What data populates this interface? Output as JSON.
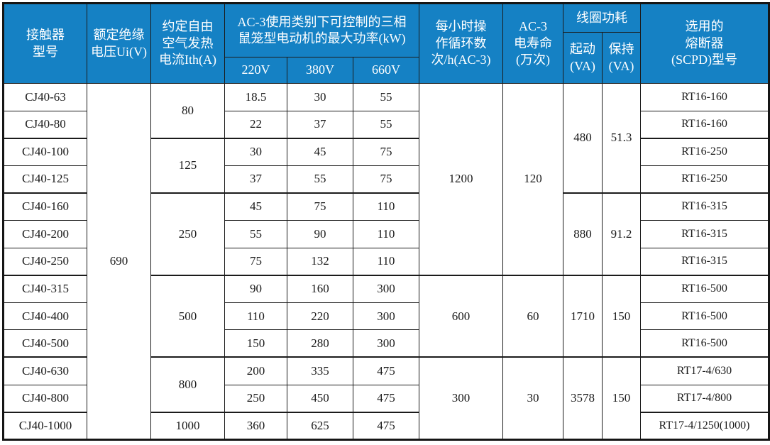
{
  "meta": {
    "description": "CJ40 series contactor technical specification table"
  },
  "colors": {
    "header_bg": "#1581C4",
    "header_text": "#FFFFFF",
    "body_text": "#1A1A1A",
    "border": "#1B1B1B",
    "page_bg": "#FFFFFF"
  },
  "table": {
    "header_rows": [
      [
        {
          "n": "contactor-model",
          "t": "接触器\n型号",
          "rs": 3
        },
        {
          "n": "rated-insulation-voltage",
          "t": "额定绝缘\n电压Ui(V)",
          "rs": 3
        },
        {
          "n": "thermal-current",
          "t": "约定自由\n空气发热\n电流Ith(A)",
          "rs": 3
        },
        {
          "n": "ac3-max-power",
          "t": "AC-3使用类别下可控制的三相\n鼠笼型电动机的最大功率(kW)",
          "rs": 2,
          "cs": 3
        },
        {
          "n": "operating-cycles",
          "t": "每小时操\n作循环数\n次/h(AC-3)",
          "rs": 3
        },
        {
          "n": "ac3-electrical-life",
          "t": "AC-3\n电寿命\n(万次)",
          "rs": 3
        },
        {
          "n": "coil-power",
          "t": "线圈功耗",
          "cs": 2
        },
        {
          "n": "fuse-type",
          "t": "选用的\n熔断器\n(SCPD)型号",
          "rs": 3
        }
      ],
      [
        {
          "n": "coil-start-va",
          "t": "起动\n(VA)",
          "rs": 2
        },
        {
          "n": "coil-hold-va",
          "t": "保持\n(VA)",
          "rs": 2
        }
      ],
      [
        {
          "n": "power-220v",
          "t": "220V"
        },
        {
          "n": "power-380v",
          "t": "380V"
        },
        {
          "n": "power-660v",
          "t": "660V"
        }
      ]
    ],
    "body_rows": [
      [
        {
          "n": "model",
          "t": "CJ40-63"
        },
        {
          "n": "ui",
          "t": "690",
          "rs": 13
        },
        {
          "n": "ith",
          "t": "80",
          "rs": 2
        },
        {
          "n": "p220",
          "t": "18.5"
        },
        {
          "n": "p380",
          "t": "30"
        },
        {
          "n": "p660",
          "t": "55"
        },
        {
          "n": "ops",
          "t": "1200",
          "rs": 7
        },
        {
          "n": "life",
          "t": "120",
          "rs": 7
        },
        {
          "n": "coil-start",
          "t": "480",
          "rs": 4
        },
        {
          "n": "coil-hold",
          "t": "51.3",
          "rs": 4
        },
        {
          "n": "fuse",
          "t": "RT16-160"
        }
      ],
      [
        {
          "n": "model",
          "t": "CJ40-80"
        },
        {
          "n": "p220",
          "t": "22"
        },
        {
          "n": "p380",
          "t": "37"
        },
        {
          "n": "p660",
          "t": "55"
        },
        {
          "n": "fuse",
          "t": "RT16-160"
        }
      ],
      [
        {
          "n": "model",
          "t": "CJ40-100"
        },
        {
          "n": "ith",
          "t": "125",
          "rs": 2
        },
        {
          "n": "p220",
          "t": "30"
        },
        {
          "n": "p380",
          "t": "45"
        },
        {
          "n": "p660",
          "t": "75"
        },
        {
          "n": "fuse",
          "t": "RT16-250"
        }
      ],
      [
        {
          "n": "model",
          "t": "CJ40-125"
        },
        {
          "n": "p220",
          "t": "37"
        },
        {
          "n": "p380",
          "t": "55"
        },
        {
          "n": "p660",
          "t": "75"
        },
        {
          "n": "fuse",
          "t": "RT16-250"
        }
      ],
      [
        {
          "n": "model",
          "t": "CJ40-160"
        },
        {
          "n": "ith",
          "t": "250",
          "rs": 3
        },
        {
          "n": "p220",
          "t": "45"
        },
        {
          "n": "p380",
          "t": "75"
        },
        {
          "n": "p660",
          "t": "110"
        },
        {
          "n": "coil-start",
          "t": "880",
          "rs": 3
        },
        {
          "n": "coil-hold",
          "t": "91.2",
          "rs": 3
        },
        {
          "n": "fuse",
          "t": "RT16-315"
        }
      ],
      [
        {
          "n": "model",
          "t": "CJ40-200"
        },
        {
          "n": "p220",
          "t": "55"
        },
        {
          "n": "p380",
          "t": "90"
        },
        {
          "n": "p660",
          "t": "110"
        },
        {
          "n": "fuse",
          "t": "RT16-315"
        }
      ],
      [
        {
          "n": "model",
          "t": "CJ40-250"
        },
        {
          "n": "p220",
          "t": "75"
        },
        {
          "n": "p380",
          "t": "132"
        },
        {
          "n": "p660",
          "t": "110"
        },
        {
          "n": "fuse",
          "t": "RT16-315"
        }
      ],
      [
        {
          "n": "model",
          "t": "CJ40-315"
        },
        {
          "n": "ith",
          "t": "500",
          "rs": 3
        },
        {
          "n": "p220",
          "t": "90"
        },
        {
          "n": "p380",
          "t": "160"
        },
        {
          "n": "p660",
          "t": "300"
        },
        {
          "n": "ops",
          "t": "600",
          "rs": 3
        },
        {
          "n": "life",
          "t": "60",
          "rs": 3
        },
        {
          "n": "coil-start",
          "t": "1710",
          "rs": 3
        },
        {
          "n": "coil-hold",
          "t": "150",
          "rs": 3
        },
        {
          "n": "fuse",
          "t": "RT16-500"
        }
      ],
      [
        {
          "n": "model",
          "t": "CJ40-400"
        },
        {
          "n": "p220",
          "t": "110"
        },
        {
          "n": "p380",
          "t": "220"
        },
        {
          "n": "p660",
          "t": "300"
        },
        {
          "n": "fuse",
          "t": "RT16-500"
        }
      ],
      [
        {
          "n": "model",
          "t": "CJ40-500"
        },
        {
          "n": "p220",
          "t": "150"
        },
        {
          "n": "p380",
          "t": "280"
        },
        {
          "n": "p660",
          "t": "300"
        },
        {
          "n": "fuse",
          "t": "RT16-500"
        }
      ],
      [
        {
          "n": "model",
          "t": "CJ40-630"
        },
        {
          "n": "ith",
          "t": "800",
          "rs": 2
        },
        {
          "n": "p220",
          "t": "200"
        },
        {
          "n": "p380",
          "t": "335"
        },
        {
          "n": "p660",
          "t": "475"
        },
        {
          "n": "ops",
          "t": "300",
          "rs": 3
        },
        {
          "n": "life",
          "t": "30",
          "rs": 3
        },
        {
          "n": "coil-start",
          "t": "3578",
          "rs": 3
        },
        {
          "n": "coil-hold",
          "t": "150",
          "rs": 3
        },
        {
          "n": "fuse",
          "t": "RT17-4/630"
        }
      ],
      [
        {
          "n": "model",
          "t": "CJ40-800"
        },
        {
          "n": "p220",
          "t": "250"
        },
        {
          "n": "p380",
          "t": "450"
        },
        {
          "n": "p660",
          "t": "475"
        },
        {
          "n": "fuse",
          "t": "RT17-4/800"
        }
      ],
      [
        {
          "n": "model",
          "t": "CJ40-1000"
        },
        {
          "n": "ith",
          "t": "1000"
        },
        {
          "n": "p220",
          "t": "360"
        },
        {
          "n": "p380",
          "t": "625"
        },
        {
          "n": "p660",
          "t": "475"
        },
        {
          "n": "fuse",
          "t": "RT17-4/1250(1000)"
        }
      ]
    ]
  }
}
